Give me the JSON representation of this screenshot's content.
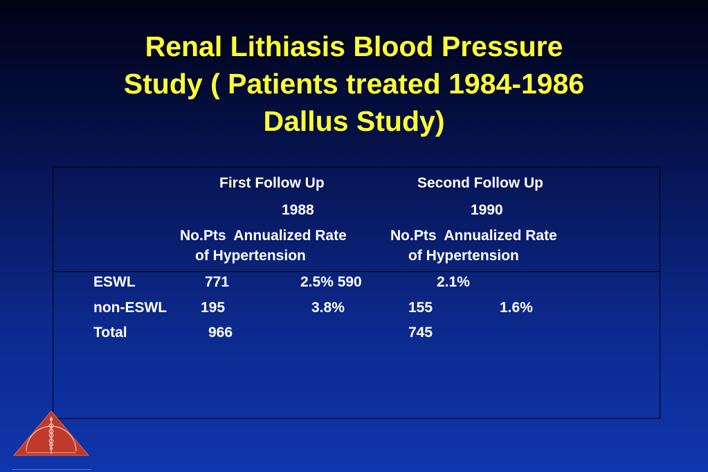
{
  "title": {
    "line1": "Renal Lithiasis Blood Pressure",
    "line2": "Study ( Patients treated 1984-1986",
    "line3": "Dallus Study)"
  },
  "table": {
    "header": {
      "first_follow_up": "First Follow Up",
      "second_follow_up": "Second Follow Up",
      "first_year": "1988",
      "second_year": "1990",
      "first_cols": "No.Pts  Annualized Rate",
      "second_cols": "No.Pts  Annualized Rate",
      "first_cols_line2": "of Hypertension",
      "second_cols_line2": "of Hypertension"
    },
    "rows": [
      {
        "label": "ESWL",
        "pts1": "771",
        "rate1": "2.5% 590",
        "pts2": "",
        "rate2": "2.1%"
      },
      {
        "label": "non-ESWL",
        "pts1": "195",
        "rate1": "3.8%",
        "pts2": "155",
        "rate2": "1.6%"
      },
      {
        "label": "Total",
        "pts1": "966",
        "rate1": "",
        "pts2": "745",
        "rate2": ""
      }
    ]
  },
  "logo": {
    "icon": "caduceus-triangle-logo",
    "color": "#c0392b"
  }
}
